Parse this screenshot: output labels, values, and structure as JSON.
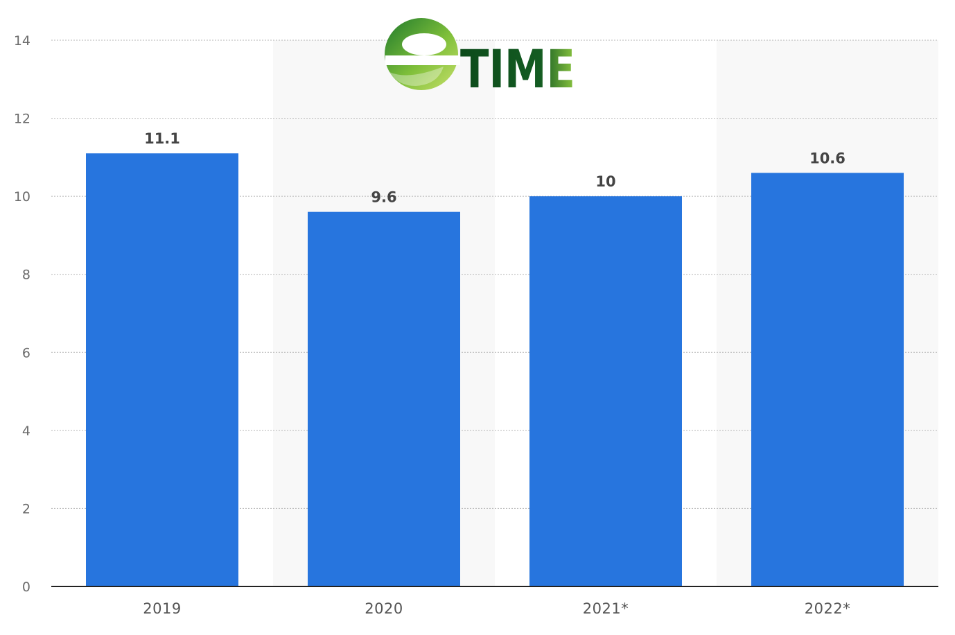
{
  "chart_data": {
    "type": "bar",
    "categories": [
      "2019",
      "2020",
      "2021*",
      "2022*"
    ],
    "values": [
      11.1,
      9.6,
      10,
      10.6
    ],
    "data_labels": [
      "11.1",
      "9.6",
      "10",
      "10.6"
    ],
    "title": "",
    "xlabel": "",
    "ylabel": "",
    "ylim": [
      0,
      14
    ],
    "yticks": [
      0,
      2,
      4,
      6,
      8,
      10,
      12,
      14
    ],
    "grid": true,
    "bar_color": "#2775de",
    "band_color": "#f8f8f8"
  },
  "watermark": {
    "text": "TIME",
    "icon": "e-leaf-icon",
    "colors": {
      "dark_green": "#0f4e1c",
      "light_green": "#8cc63f"
    }
  }
}
